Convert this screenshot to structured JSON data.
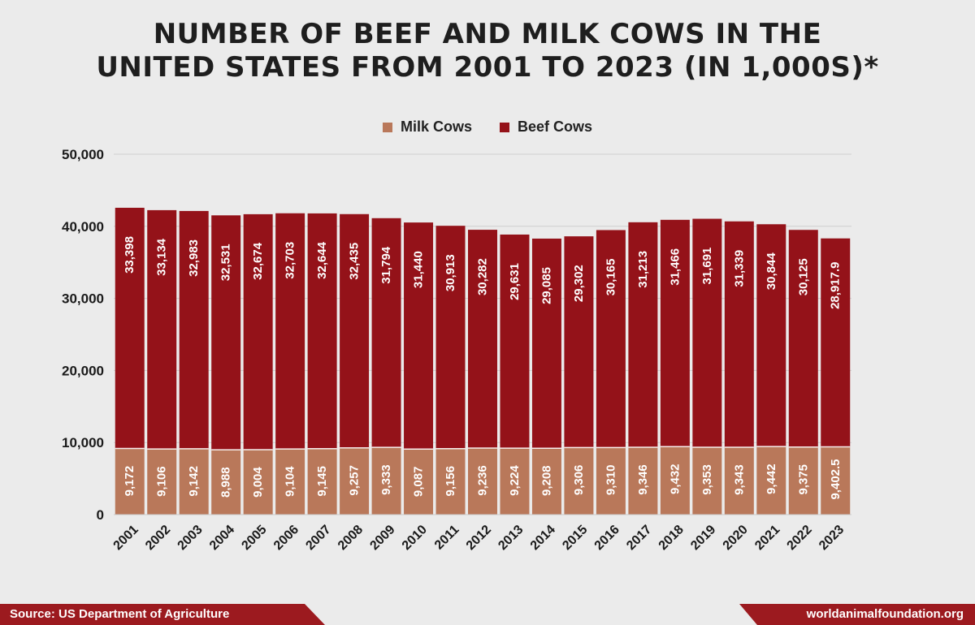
{
  "chart_data": {
    "type": "bar",
    "stacked": true,
    "title_line1": "NUMBER OF BEEF AND MILK COWS IN THE",
    "title_line2": "UNITED STATES FROM 2001 TO 2023 (IN 1,000S)*",
    "categories": [
      "2001",
      "2002",
      "2003",
      "2004",
      "2005",
      "2006",
      "2007",
      "2008",
      "2009",
      "2010",
      "2011",
      "2012",
      "2013",
      "2014",
      "2015",
      "2016",
      "2017",
      "2018",
      "2019",
      "2020",
      "2021",
      "2022",
      "2023"
    ],
    "series": [
      {
        "name": "Milk Cows",
        "color": "#b9785a",
        "values": [
          9172,
          9106,
          9142,
          8988,
          9004,
          9104,
          9145,
          9257,
          9333,
          9087,
          9156,
          9236,
          9224,
          9208,
          9306,
          9310,
          9346,
          9432,
          9353,
          9343,
          9442,
          9375,
          9402.5
        ],
        "labels": [
          "9,172",
          "9,106",
          "9,142",
          "8,988",
          "9,004",
          "9,104",
          "9,145",
          "9,257",
          "9,333",
          "9,087",
          "9,156",
          "9,236",
          "9,224",
          "9,208",
          "9,306",
          "9,310",
          "9,346",
          "9,432",
          "9,353",
          "9,343",
          "9,442",
          "9,375",
          "9,402.5"
        ]
      },
      {
        "name": "Beef Cows",
        "color": "#941219",
        "values": [
          33398,
          33134,
          32983,
          32531,
          32674,
          32703,
          32644,
          32435,
          31794,
          31440,
          30913,
          30282,
          29631,
          29085,
          29302,
          30165,
          31213,
          31466,
          31691,
          31339,
          30844,
          30125,
          28917.9
        ],
        "labels": [
          "33,398",
          "33,134",
          "32,983",
          "32,531",
          "32,674",
          "32,703",
          "32,644",
          "32,435",
          "31,794",
          "31,440",
          "30,913",
          "30,282",
          "29,631",
          "29,085",
          "29,302",
          "30,165",
          "31,213",
          "31,466",
          "31,691",
          "31,339",
          "30,844",
          "30,125",
          "28,917.9"
        ]
      }
    ],
    "ylim": [
      0,
      50000
    ],
    "yticks": [
      0,
      10000,
      20000,
      30000,
      40000,
      50000
    ],
    "ytick_labels": [
      "0",
      "10,000",
      "20,000",
      "30,000",
      "40,000",
      "50,000"
    ],
    "grid": true,
    "legend_position": "top-center"
  },
  "footer": {
    "source": "Source: US Department of Agriculture",
    "site": "worldanimalfoundation.org"
  }
}
